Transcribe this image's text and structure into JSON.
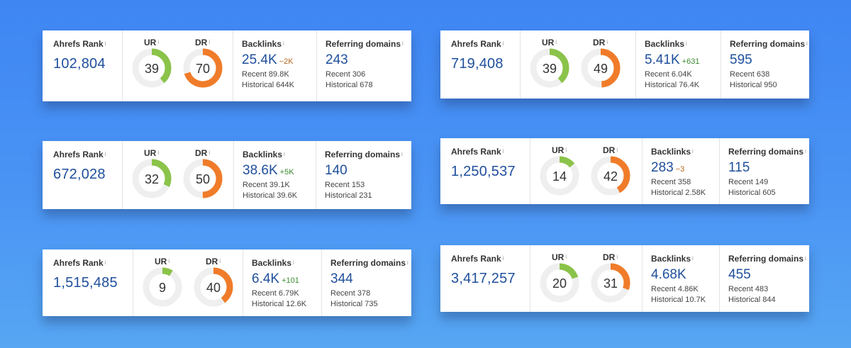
{
  "labels": {
    "rank": "Ahrefs Rank",
    "ur": "UR",
    "dr": "DR",
    "backlinks": "Backlinks",
    "refdomains": "Referring domains",
    "info": "i"
  },
  "colors": {
    "ur": "#8bc34a",
    "dr": "#f07c2a",
    "track": "#efefef",
    "value": "#1f4f9c"
  },
  "cards": [
    {
      "rank": "102,804",
      "ur": 39,
      "dr": 70,
      "backlinks": "25.4K",
      "backlinks_delta": "−2K",
      "backlinks_recent": "Recent 89.8K",
      "backlinks_historical": "Historical 644K",
      "refdomains": "243",
      "refdomains_recent": "Recent 306",
      "refdomains_historical": "Historical 678"
    },
    {
      "rank": "719,408",
      "ur": 39,
      "dr": 49,
      "backlinks": "5.41K",
      "backlinks_delta": "+631",
      "backlinks_recent": "Recent 6.04K",
      "backlinks_historical": "Historical 76.4K",
      "refdomains": "595",
      "refdomains_recent": "Recent 638",
      "refdomains_historical": "Historical 950"
    },
    {
      "rank": "672,028",
      "ur": 32,
      "dr": 50,
      "backlinks": "38.6K",
      "backlinks_delta": "+5K",
      "backlinks_recent": "Recent 39.1K",
      "backlinks_historical": "Historical 39.6K",
      "refdomains": "140",
      "refdomains_recent": "Recent 153",
      "refdomains_historical": "Historical 231"
    },
    {
      "rank": "1,250,537",
      "ur": 14,
      "dr": 42,
      "backlinks": "283",
      "backlinks_delta": "−3",
      "backlinks_recent": "Recent 358",
      "backlinks_historical": "Historical 2.58K",
      "refdomains": "115",
      "refdomains_recent": "Recent 149",
      "refdomains_historical": "Historical 605"
    },
    {
      "rank": "1,515,485",
      "ur": 9,
      "dr": 40,
      "backlinks": "6.4K",
      "backlinks_delta": "+101",
      "backlinks_recent": "Recent 6.79K",
      "backlinks_historical": "Historical 12.6K",
      "refdomains": "344",
      "refdomains_recent": "Recent 378",
      "refdomains_historical": "Historical 735"
    },
    {
      "rank": "3,417,257",
      "ur": 20,
      "dr": 31,
      "backlinks": "4.68K",
      "backlinks_delta": "",
      "backlinks_recent": "Recent 4.86K",
      "backlinks_historical": "Historical 10.7K",
      "refdomains": "455",
      "refdomains_recent": "Recent 483",
      "refdomains_historical": "Historical 844"
    }
  ]
}
